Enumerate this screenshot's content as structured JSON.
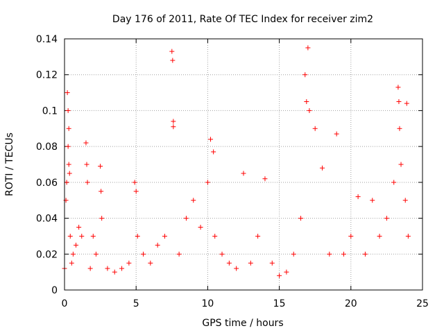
{
  "chart_data": {
    "type": "scatter",
    "title": "Day 176 of 2011, Rate Of TEC Index for receiver zim2",
    "xlabel": "GPS time / hours",
    "ylabel": "ROTI / TECUs",
    "xlim": [
      0,
      25
    ],
    "ylim": [
      0,
      0.14
    ],
    "x_ticks": [
      0,
      5,
      10,
      15,
      20,
      25
    ],
    "x_tick_labels": [
      "0",
      "5",
      "10",
      "15",
      "20",
      "25"
    ],
    "y_ticks": [
      0,
      0.02,
      0.04,
      0.06,
      0.08,
      0.1,
      0.12,
      0.14
    ],
    "y_tick_labels": [
      "0",
      "0.02",
      "0.04",
      "0.06",
      "0.08",
      "0.1",
      "0.12",
      "0.14"
    ],
    "grid": true,
    "marker": "+",
    "color": "#ff0000",
    "series": [
      {
        "name": "ROTI",
        "x": [
          0.0,
          0.1,
          0.15,
          0.2,
          0.25,
          0.25,
          0.3,
          0.3,
          0.35,
          0.4,
          0.5,
          0.6,
          0.8,
          1.0,
          1.2,
          1.5,
          1.55,
          1.6,
          1.8,
          2.0,
          2.2,
          2.5,
          2.55,
          2.6,
          3.0,
          3.5,
          4.0,
          4.5,
          4.9,
          5.0,
          5.1,
          5.5,
          6.0,
          6.5,
          7.0,
          7.5,
          7.55,
          7.6,
          7.6,
          8.0,
          8.5,
          9.0,
          9.5,
          10.0,
          10.2,
          10.4,
          10.5,
          11.0,
          11.5,
          12.0,
          12.5,
          13.0,
          13.5,
          14.0,
          14.5,
          15.0,
          15.5,
          16.0,
          16.5,
          16.8,
          16.9,
          17.0,
          17.1,
          17.5,
          18.0,
          18.5,
          19.0,
          19.5,
          20.0,
          20.5,
          21.0,
          21.5,
          22.0,
          22.5,
          23.0,
          23.3,
          23.35,
          23.4,
          23.5,
          23.8,
          23.9,
          24.0
        ],
        "y": [
          0.012,
          0.05,
          0.06,
          0.11,
          0.1,
          0.08,
          0.09,
          0.07,
          0.065,
          0.03,
          0.015,
          0.02,
          0.025,
          0.035,
          0.03,
          0.082,
          0.07,
          0.06,
          0.012,
          0.03,
          0.02,
          0.069,
          0.055,
          0.04,
          0.012,
          0.01,
          0.012,
          0.015,
          0.06,
          0.055,
          0.03,
          0.02,
          0.015,
          0.025,
          0.03,
          0.133,
          0.128,
          0.094,
          0.091,
          0.02,
          0.04,
          0.05,
          0.035,
          0.06,
          0.084,
          0.077,
          0.03,
          0.02,
          0.015,
          0.012,
          0.065,
          0.015,
          0.03,
          0.062,
          0.015,
          0.008,
          0.01,
          0.02,
          0.04,
          0.12,
          0.105,
          0.135,
          0.1,
          0.09,
          0.068,
          0.02,
          0.087,
          0.02,
          0.03,
          0.052,
          0.02,
          0.05,
          0.03,
          0.04,
          0.06,
          0.113,
          0.105,
          0.09,
          0.07,
          0.05,
          0.104,
          0.03
        ]
      }
    ]
  }
}
